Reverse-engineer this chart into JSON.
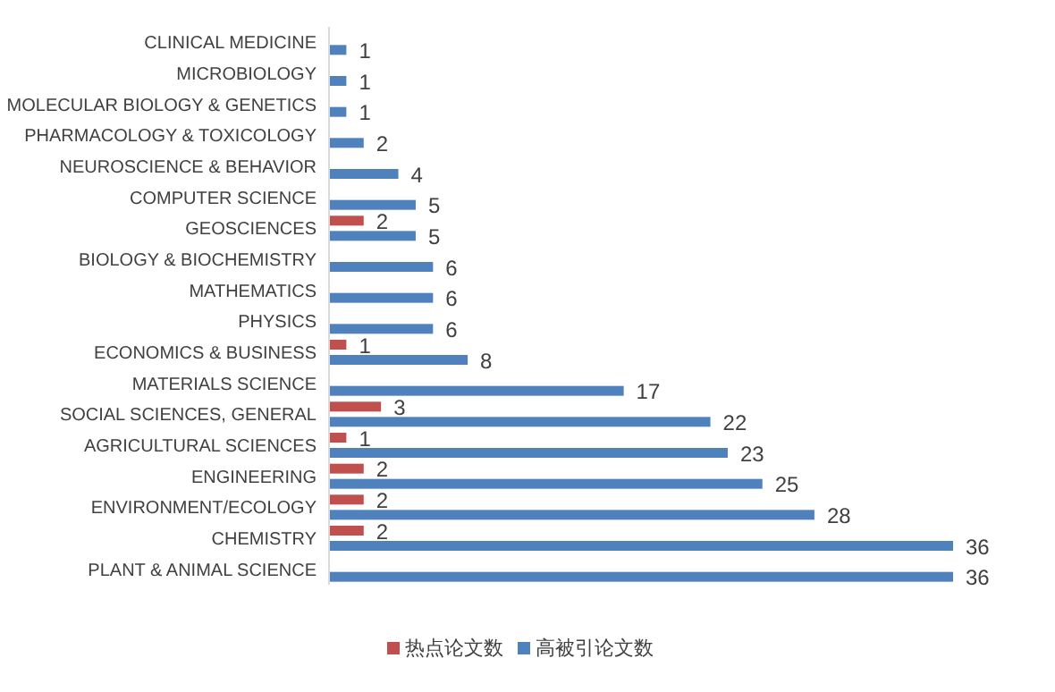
{
  "chart_data": {
    "type": "bar",
    "orientation": "horizontal",
    "categories": [
      "CLINICAL MEDICINE",
      "MICROBIOLOGY",
      "MOLECULAR BIOLOGY & GENETICS",
      "PHARMACOLOGY & TOXICOLOGY",
      "NEUROSCIENCE & BEHAVIOR",
      "COMPUTER SCIENCE",
      "GEOSCIENCES",
      "BIOLOGY & BIOCHEMISTRY",
      "MATHEMATICS",
      "PHYSICS",
      "ECONOMICS & BUSINESS",
      "MATERIALS SCIENCE",
      "SOCIAL SCIENCES, GENERAL",
      "AGRICULTURAL SCIENCES",
      "ENGINEERING",
      "ENVIRONMENT/ECOLOGY",
      "CHEMISTRY",
      "PLANT & ANIMAL SCIENCE"
    ],
    "series": [
      {
        "name": "热点论文数",
        "color": "#c0504d",
        "values": [
          null,
          null,
          null,
          null,
          null,
          null,
          2,
          null,
          null,
          null,
          1,
          null,
          3,
          1,
          2,
          2,
          2,
          null
        ]
      },
      {
        "name": "高被引论文数",
        "color": "#4f81bd",
        "values": [
          1,
          1,
          1,
          2,
          4,
          5,
          5,
          6,
          6,
          6,
          8,
          17,
          22,
          23,
          25,
          28,
          36,
          36
        ]
      }
    ],
    "data_labels": true,
    "legend": "bottom"
  }
}
